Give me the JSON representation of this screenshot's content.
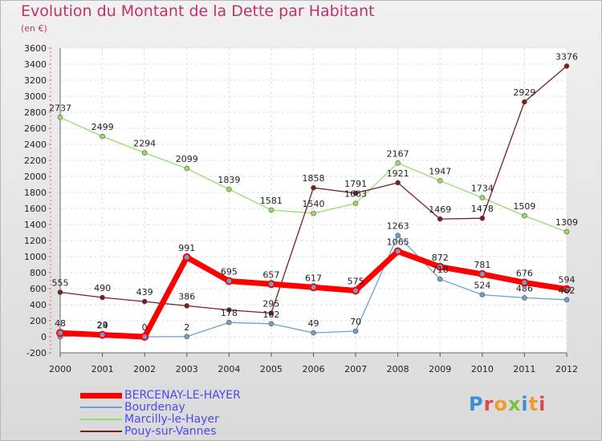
{
  "title": "Evolution du Montant de la Dette par Habitant",
  "subtitle": "(en €)",
  "logo_text": "Proxiti",
  "chart_data": {
    "type": "line",
    "title": "Evolution du Montant de la Dette par Habitant",
    "subtitle": "(en €)",
    "x": [
      "2000",
      "2001",
      "2002",
      "2003",
      "2004",
      "2005",
      "2006",
      "2007",
      "2008",
      "2009",
      "2010",
      "2011",
      "2012"
    ],
    "ylim": [
      -200,
      3600
    ],
    "yticks": [
      "-200",
      "0",
      "200",
      "400",
      "600",
      "800",
      "1000",
      "1200",
      "1400",
      "1600",
      "1800",
      "2000",
      "2200",
      "2400",
      "2600",
      "2800",
      "3000",
      "3200",
      "3400",
      "3600"
    ],
    "grid": true,
    "legend_position": "bottom",
    "series": [
      {
        "name": "BERCENAY-LE-HAYER",
        "color": "#ff0000",
        "values": [
          48,
          24,
          0,
          991,
          695,
          657,
          617,
          575,
          1065,
          872,
          781,
          676,
          594
        ],
        "labels": [
          "48",
          "24",
          "0",
          "991",
          "695",
          "657",
          "617",
          "575",
          "1065",
          "872",
          "781",
          "676",
          "594"
        ]
      },
      {
        "name": "Bourdenay",
        "color": "#6f9fcf",
        "values": [
          0,
          29,
          0,
          2,
          178,
          162,
          49,
          70,
          1263,
          718,
          524,
          486,
          462
        ],
        "labels": [
          "",
          "29",
          "",
          "2",
          "178",
          "162",
          "49",
          "70",
          "1263",
          "718",
          "524",
          "486",
          "462"
        ]
      },
      {
        "name": "Marcilly-le-Hayer",
        "color": "#99dd66",
        "values": [
          2737,
          2499,
          2294,
          2099,
          1839,
          1581,
          1540,
          1663,
          2167,
          1947,
          1734,
          1509,
          1309
        ],
        "labels": [
          "2737",
          "2499",
          "2294",
          "2099",
          "1839",
          "1581",
          "1540",
          "1663",
          "2167",
          "1947",
          "1734",
          "1509",
          "1309"
        ]
      },
      {
        "name": "Pouy-sur-Vannes",
        "color": "#7a1f1f",
        "values": [
          555,
          490,
          439,
          386,
          334,
          295,
          1858,
          1791,
          1921,
          1469,
          1478,
          2929,
          3376
        ],
        "labels": [
          "555",
          "490",
          "439",
          "386",
          "",
          "295",
          "1858",
          "1791",
          "1921",
          "1469",
          "1478",
          "2929",
          "3376"
        ]
      }
    ]
  }
}
